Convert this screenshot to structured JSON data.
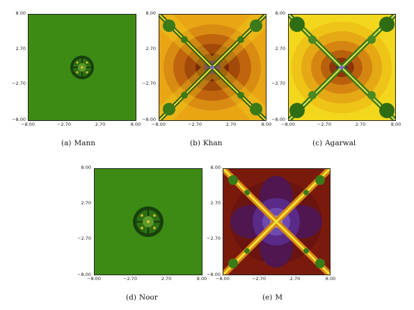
{
  "ticks": [
    "−8.00",
    "−2.70",
    "2.70",
    "8.00"
  ],
  "panels": [
    {
      "letter": "(a)",
      "name": "Mann"
    },
    {
      "letter": "(b)",
      "name": "Khan"
    },
    {
      "letter": "(c)",
      "name": "Agarwal"
    },
    {
      "letter": "(d)",
      "name": "Noor"
    },
    {
      "letter": "(e)",
      "name": "M"
    }
  ]
}
